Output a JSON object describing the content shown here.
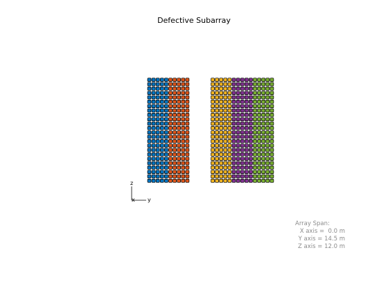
{
  "title": "Defective Subarray",
  "array": {
    "rows": 24,
    "groups": [
      {
        "color": "#0072BD",
        "columns": 5
      },
      {
        "color": "#D95319",
        "columns": 5
      },
      {
        "color": "#EDB120",
        "columns": 5
      },
      {
        "color": "#7E2F8E",
        "columns": 5
      },
      {
        "color": "#77AC30",
        "columns": 5
      }
    ],
    "missing_column_after_group": 2
  },
  "axes_triad": {
    "z_label": "z",
    "x_label": "x",
    "y_label": "y"
  },
  "span_info": {
    "title": "Array Span:",
    "x_line": "X axis =  0.0 m",
    "y_line": "Y axis = 14.5 m",
    "z_line": "Z axis = 12.0 m"
  }
}
